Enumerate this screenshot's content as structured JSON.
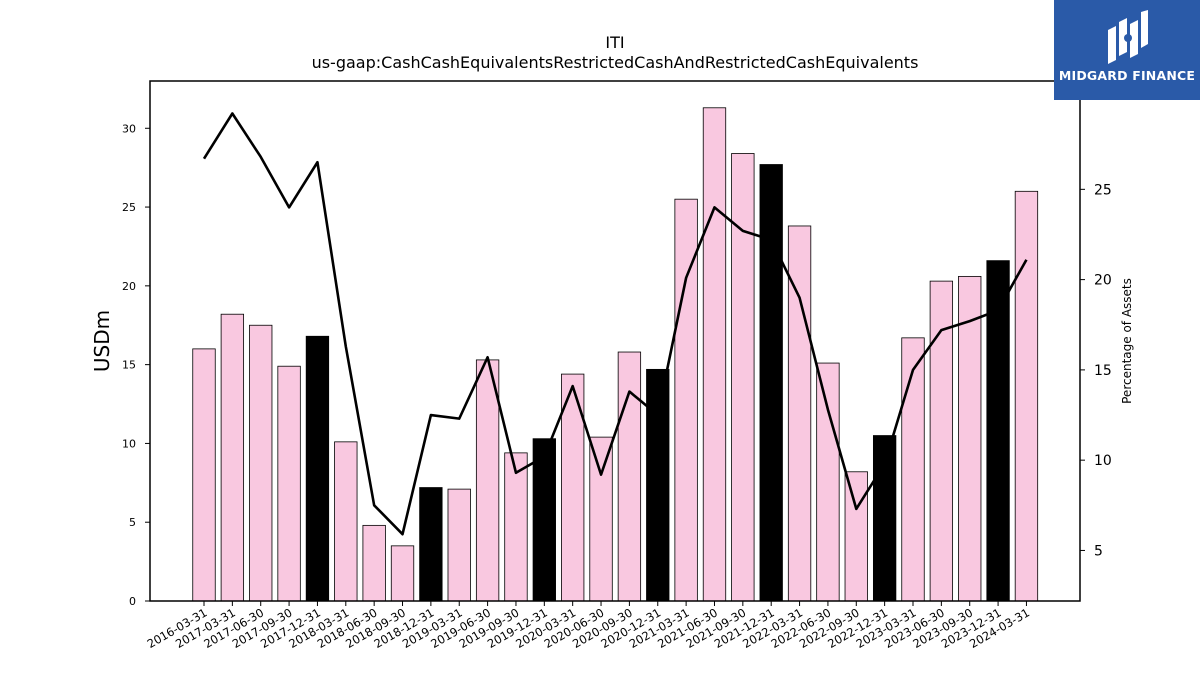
{
  "brand": {
    "name": "MIDGARD FINANCE",
    "bg_color": "#2a5aa8"
  },
  "chart_data": {
    "type": "bar",
    "title": "ITI",
    "subtitle": "us-gaap:CashCashEquivalentsRestrictedCashAndRestrictedCashEquivalents",
    "ylabel": "USDm",
    "y2label": "Percentage of Assets",
    "ylim": [
      0,
      33
    ],
    "y2lim": [
      2.2,
      31.0
    ],
    "yticks": [
      0,
      5,
      10,
      15,
      20,
      25,
      30
    ],
    "y2ticks": [
      5,
      10,
      15,
      20,
      25
    ],
    "categories": [
      "2016-03-31",
      "2017-03-31",
      "2017-06-30",
      "2017-09-30",
      "2017-12-31",
      "2018-03-31",
      "2018-06-30",
      "2018-09-30",
      "2018-12-31",
      "2019-03-31",
      "2019-06-30",
      "2019-09-30",
      "2019-12-31",
      "2020-03-31",
      "2020-06-30",
      "2020-09-30",
      "2020-12-31",
      "2021-03-31",
      "2021-06-30",
      "2021-09-30",
      "2021-12-31",
      "2022-03-31",
      "2022-06-30",
      "2022-09-30",
      "2022-12-31",
      "2023-03-31",
      "2023-06-30",
      "2023-09-30",
      "2023-12-31",
      "2024-03-31"
    ],
    "series": [
      {
        "type": "bar",
        "values": [
          16.0,
          18.2,
          17.5,
          14.9,
          16.8,
          10.1,
          4.8,
          3.5,
          7.2,
          7.1,
          15.3,
          9.4,
          10.3,
          14.4,
          10.4,
          15.8,
          14.7,
          25.5,
          31.3,
          28.4,
          27.7,
          23.8,
          15.1,
          8.2,
          10.5,
          16.7,
          20.3,
          20.6,
          21.6,
          26.0
        ],
        "highlight": [
          false,
          false,
          false,
          false,
          true,
          false,
          false,
          false,
          true,
          false,
          false,
          false,
          true,
          false,
          false,
          false,
          true,
          false,
          false,
          false,
          true,
          false,
          false,
          false,
          true,
          false,
          false,
          false,
          true,
          false
        ]
      },
      {
        "type": "line",
        "axis": "right",
        "values": [
          26.7,
          29.2,
          26.8,
          24.0,
          26.5,
          16.3,
          7.5,
          5.9,
          12.5,
          12.3,
          15.7,
          9.3,
          10.2,
          14.1,
          9.2,
          13.8,
          12.5,
          20.1,
          24.0,
          22.7,
          22.2,
          19.0,
          12.8,
          7.3,
          9.8,
          15.0,
          17.2,
          17.7,
          18.3,
          21.1
        ]
      }
    ],
    "colors": {
      "bar_normal": "#f9c8e0",
      "bar_highlight": "#000000",
      "line": "#000000"
    },
    "grid": false
  }
}
